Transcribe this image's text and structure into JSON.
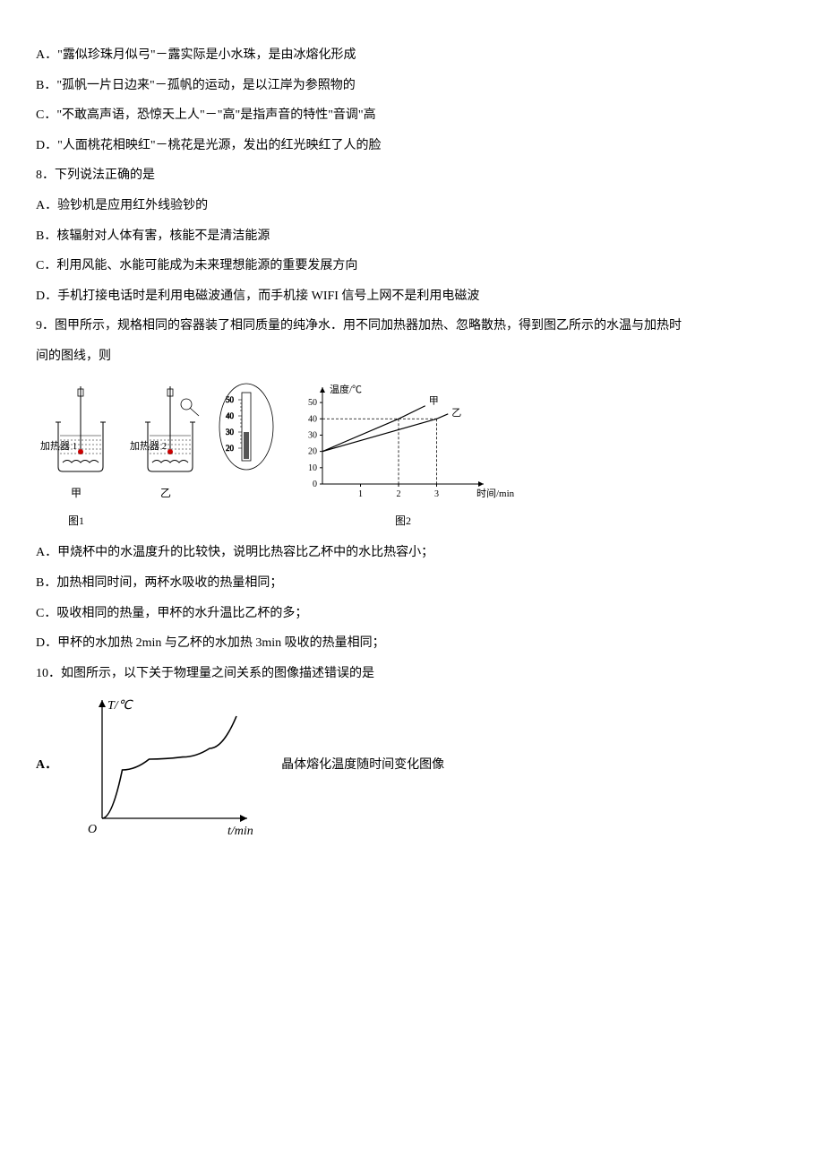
{
  "q7": {
    "A": "A．\"露似珍珠月似弓\"－露实际是小水珠，是由冰熔化形成",
    "B": "B．\"孤帆一片日边来\"－孤帆的运动，是以江岸为参照物的",
    "C": "C．\"不敢高声语，恐惊天上人\"－\"高\"是指声音的特性\"音调\"高",
    "D": "D．\"人面桃花相映红\"－桃花是光源，发出的红光映红了人的脸"
  },
  "q8": {
    "stem": "8．下列说法正确的是",
    "A": "A．验钞机是应用红外线验钞的",
    "B": "B．核辐射对人体有害，核能不是清洁能源",
    "C": "C．利用风能、水能可能成为未来理想能源的重要发展方向",
    "D": "D．手机打接电话时是利用电磁波通信，而手机接 WIFI 信号上网不是利用电磁波"
  },
  "q9": {
    "stem1": "9．图甲所示，规格相同的容器装了相同质量的纯净水．用不同加热器加热、忽略散热，得到图乙所示的水温与加热时",
    "stem2": "间的图线，则",
    "heater1": "加热器 1",
    "heater2": "加热器 2",
    "cup_jia": "甲",
    "cup_yi": "乙",
    "fig1": "图1",
    "fig2": "图2",
    "chart": {
      "ylabel": "温度/℃",
      "xlabel": "时间/min",
      "series_jia": "甲",
      "series_yi": "乙",
      "yticks": [
        0,
        10,
        20,
        30,
        40,
        50
      ],
      "xticks": [
        0,
        1,
        2,
        3
      ],
      "ylim": [
        0,
        55
      ],
      "xlim": [
        0,
        4
      ],
      "jia": {
        "x": [
          0,
          2,
          2.7
        ],
        "y": [
          20,
          40,
          48
        ]
      },
      "yi": {
        "x": [
          0,
          3,
          3.3
        ],
        "y": [
          20,
          40,
          43
        ]
      },
      "line_color": "#000000",
      "axis_color": "#000000",
      "dash_color": "#000000",
      "background_color": "#ffffff",
      "dash_y": 40,
      "dash_x_jia": 2,
      "dash_x_yi": 3
    },
    "thermo": {
      "ticks": [
        20,
        30,
        40,
        50
      ]
    },
    "A": "A．甲烧杯中的水温度升的比较快，说明比热容比乙杯中的水比热容小；",
    "B": "B．加热相同时间，两杯水吸收的热量相同；",
    "C": "C．吸收相同的热量，甲杯的水升温比乙杯的多；",
    "D": "D．甲杯的水加热 2min 与乙杯的水加热 3min 吸收的热量相同；"
  },
  "q10": {
    "stem": "10．如图所示，以下关于物理量之间关系的图像描述错误的是",
    "A_label": "A．",
    "A_text": "晶体熔化温度随时间变化图像",
    "chart": {
      "ylabel": "T/℃",
      "xlabel": "t/min",
      "axis_color": "#000000",
      "line_color": "#000000",
      "points": [
        [
          0,
          0
        ],
        [
          0.15,
          0.45
        ],
        [
          0.35,
          0.55
        ],
        [
          0.6,
          0.57
        ],
        [
          0.8,
          0.65
        ],
        [
          1.0,
          0.95
        ]
      ]
    }
  }
}
